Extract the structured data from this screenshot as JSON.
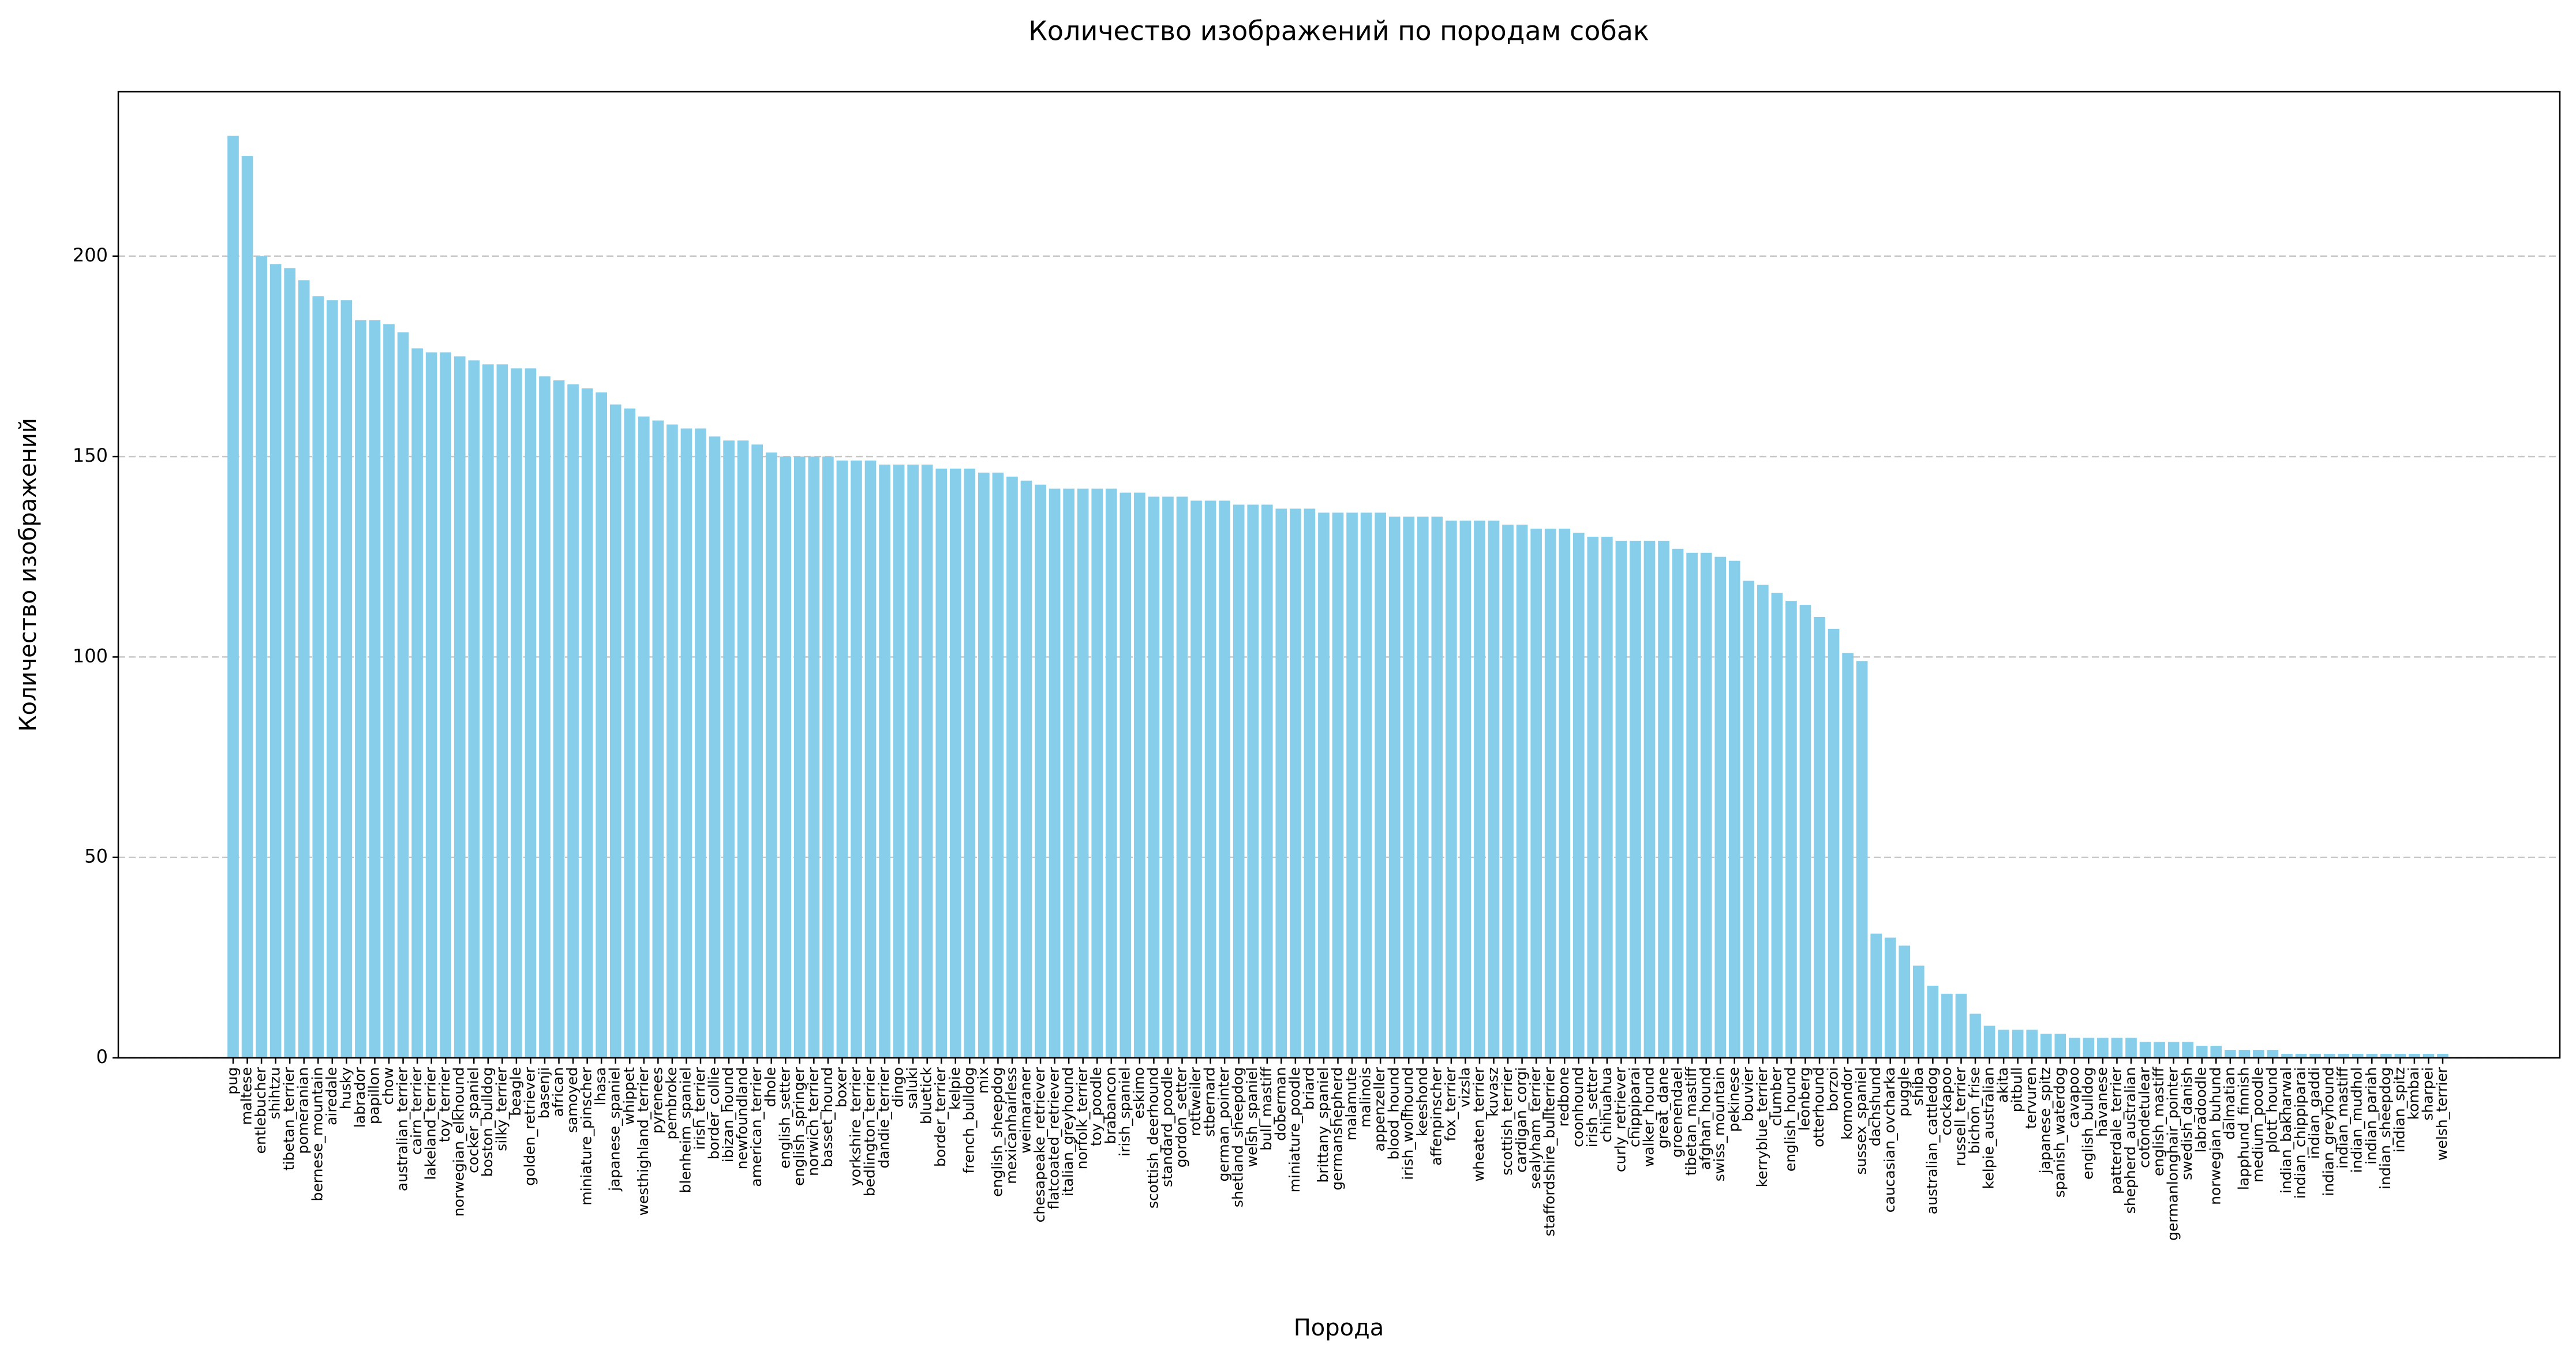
{
  "chart_data": {
    "type": "bar",
    "title": "Количество изображений по породам собак",
    "x_label": "Порода",
    "y_label": "Количество изображений",
    "color": "#87ceeb",
    "grid": true,
    "categories": [
      "pug",
      "maltese",
      "entlebucher",
      "shihtzu",
      "tibetan_terrier",
      "pomeranian",
      "bernese_mountain",
      "airedale",
      "husky",
      "labrador",
      "papillon",
      "chow",
      "australian_terrier",
      "cairn_terrier",
      "lakeland_terrier",
      "toy_terrier",
      "norwegian_elkhound",
      "cocker_spaniel",
      "boston_bulldog",
      "silky_terrier",
      "beagle",
      "golden_retriever",
      "basenji",
      "african",
      "samoyed",
      "miniature_pinscher",
      "lhasa",
      "japanese_spaniel",
      "whippet",
      "westhighland_terrier",
      "pyrenees",
      "pembroke",
      "blenheim_spaniel",
      "irish_terrier",
      "border_collie",
      "ibizan_hound",
      "newfoundland",
      "american_terrier",
      "dhole",
      "english_setter",
      "english_springer",
      "norwich_terrier",
      "basset_hound",
      "boxer",
      "yorkshire_terrier",
      "bedlington_terrier",
      "dandie_terrier",
      "dingo",
      "saluki",
      "bluetick",
      "border_terrier",
      "kelpie",
      "french_bulldog",
      "mix",
      "english_sheepdog",
      "mexicanhairless",
      "weimaraner",
      "chesapeake_retriever",
      "flatcoated_retriever",
      "italian_greyhound",
      "norfolk_terrier",
      "toy_poodle",
      "brabancon",
      "irish_spaniel",
      "eskimo",
      "scottish_deerhound",
      "standard_poodle",
      "gordon_setter",
      "rottweiler",
      "stbernard",
      "german_pointer",
      "shetland_sheepdog",
      "welsh_spaniel",
      "bull_mastiff",
      "doberman",
      "miniature_poodle",
      "briard",
      "brittany_spaniel",
      "germanshepherd",
      "malamute",
      "malinois",
      "appenzeller",
      "blood_hound",
      "irish_wolfhound",
      "keeshond",
      "affenpinscher",
      "fox_terrier",
      "vizsla",
      "wheaten_terrier",
      "kuvasz",
      "scottish_terrier",
      "cardigan_corgi",
      "sealyham_terrier",
      "staffordshire_bullterrier",
      "redbone",
      "coonhound",
      "irish_setter",
      "chihuahua",
      "curly_retriever",
      "chippiparai",
      "walker_hound",
      "great_dane",
      "groenendael",
      "tibetan_mastiff",
      "afghan_hound",
      "swiss_mountain",
      "pekinese",
      "bouvier",
      "kerryblue_terrier",
      "clumber",
      "english_hound",
      "leonberg",
      "otterhound",
      "borzoi",
      "komondor",
      "sussex_spaniel",
      "dachshund",
      "caucasian_ovcharka",
      "puggle",
      "shiba",
      "australian_cattledog",
      "cockapoo",
      "russell_terrier",
      "bichon_frise",
      "kelpie_australian",
      "akita",
      "pitbull",
      "tervuren",
      "japanese_spitz",
      "spanish_waterdog",
      "cavapoo",
      "english_bulldog",
      "havanese",
      "patterdale_terrier",
      "shepherd_australian",
      "cotondetulear",
      "english_mastiff",
      "germanlonghair_pointer",
      "swedish_danish",
      "labradoodle",
      "norwegian_buhund",
      "dalmatian",
      "lapphund_finnish",
      "medium_poodle",
      "plott_hound",
      "indian_bakharwal",
      "indian_chippiparai",
      "indian_gaddi",
      "indian_greyhound",
      "indian_mastiff",
      "indian_mudhol",
      "indian_pariah",
      "indian_sheepdog",
      "indian_spitz",
      "kombai",
      "sharpei",
      "welsh_terrier"
    ],
    "values": [
      230,
      225,
      200,
      198,
      197,
      194,
      190,
      189,
      189,
      184,
      184,
      183,
      181,
      177,
      176,
      176,
      175,
      174,
      173,
      173,
      172,
      172,
      170,
      169,
      168,
      167,
      166,
      163,
      162,
      160,
      159,
      158,
      157,
      157,
      155,
      154,
      154,
      153,
      151,
      150,
      150,
      150,
      150,
      149,
      149,
      149,
      148,
      148,
      148,
      148,
      147,
      147,
      147,
      146,
      146,
      145,
      144,
      143,
      142,
      142,
      142,
      142,
      142,
      141,
      141,
      140,
      140,
      140,
      139,
      139,
      139,
      138,
      138,
      138,
      137,
      137,
      137,
      136,
      136,
      136,
      136,
      136,
      135,
      135,
      135,
      135,
      134,
      134,
      134,
      134,
      133,
      133,
      132,
      132,
      132,
      131,
      130,
      130,
      129,
      129,
      129,
      129,
      127,
      126,
      126,
      125,
      124,
      119,
      118,
      116,
      114,
      113,
      110,
      107,
      101,
      99,
      31,
      30,
      28,
      23,
      18,
      16,
      16,
      11,
      8,
      7,
      7,
      7,
      6,
      6,
      5,
      5,
      5,
      5,
      5,
      4,
      4,
      4,
      4,
      3,
      3,
      2,
      2,
      2,
      2,
      1,
      1,
      1,
      1,
      1,
      1,
      1,
      1,
      1,
      1,
      1,
      1
    ],
    "ylim": [
      0,
      241
    ],
    "yticks": [
      0,
      50,
      100,
      150,
      200
    ]
  }
}
